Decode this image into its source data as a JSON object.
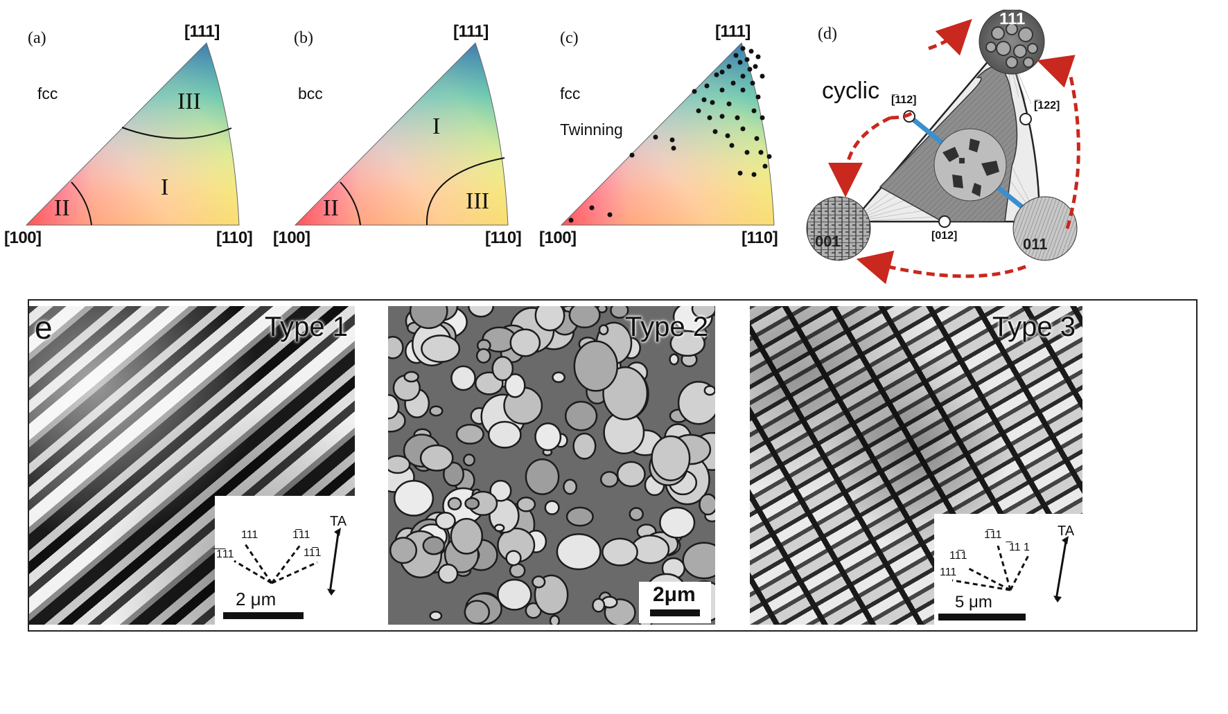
{
  "panels_top": [
    {
      "letter": "(a)",
      "lattice": "fcc",
      "extra": "",
      "corner_top": "[111]",
      "corner_left": "[100]",
      "corner_right": "[110]",
      "regions": {
        "top": "III",
        "mid": "I",
        "left": "II"
      }
    },
    {
      "letter": "(b)",
      "lattice": "bcc",
      "extra": "",
      "corner_top": "[111]",
      "corner_left": "[100]",
      "corner_right": "[110]",
      "regions": {
        "top": "I",
        "right": "III",
        "left": "II"
      }
    },
    {
      "letter": "(c)",
      "lattice": "fcc",
      "extra": "Twinning",
      "corner_top": "[111]",
      "corner_left": "[100]",
      "corner_right": "[110]"
    }
  ],
  "panel_d": {
    "letter": "(d)",
    "title": "cyclic",
    "corner_top": "111",
    "corner_top_bar": "̅",
    "corner_left": "001",
    "corner_right": "011",
    "pole_112": "[̅112]",
    "pole_122": "[̅122]",
    "pole_012": "[012]",
    "colors": {
      "arrow": "#c8281e",
      "blue_line": "#3a8fd0",
      "region": "#8a8a8a"
    }
  },
  "panel_e": {
    "letter": "e",
    "images": [
      {
        "type_label": "Type 1",
        "scale_label": "2 μm",
        "inset": {
          "labels": [
            "111",
            "̅1̅11",
            "1̅11",
            "11̅1"
          ],
          "axis": "TA"
        }
      },
      {
        "type_label": "Type 2",
        "scale_label": "2μm"
      },
      {
        "type_label": "Type 3",
        "scale_label": "5 μm",
        "inset": {
          "labels": [
            "1̅11",
            "̅11 1",
            "111",
            "11̅1"
          ],
          "axis": "TA"
        }
      }
    ]
  }
}
